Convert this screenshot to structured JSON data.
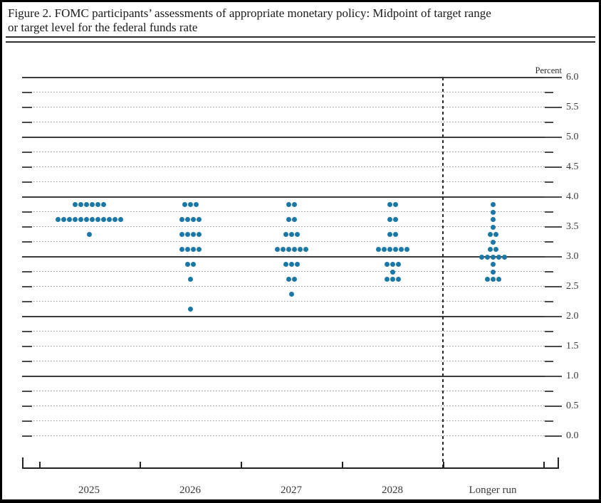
{
  "figure": {
    "title_line1": "Figure 2. FOMC participants’ assessments of appropriate monetary policy: Midpoint of target range",
    "title_line2": "or target level for the federal funds rate"
  },
  "chart_data": {
    "type": "scatter",
    "subtype": "fomc-dot-plot",
    "title": "Figure 2. FOMC participants’ assessments of appropriate monetary policy: Midpoint of target range or target level for the federal funds rate",
    "unit_label": "Percent",
    "ylim": [
      0.0,
      6.0
    ],
    "y_tick_step": 0.5,
    "grid_step": 0.25,
    "solid_gridlines": [
      1.0,
      2.0,
      3.0,
      4.0,
      5.0,
      6.0
    ],
    "y_tick_labels": [
      "6.0",
      "5.5",
      "5.0",
      "4.5",
      "4.0",
      "3.5",
      "3.0",
      "2.5",
      "2.0",
      "1.5",
      "1.0",
      "0.5",
      "0.0"
    ],
    "categories": [
      "2025",
      "2026",
      "2027",
      "2028",
      "Longer run"
    ],
    "dot_color": "#1a78a8",
    "participants_per_column": 19,
    "series": [
      {
        "name": "2025",
        "dots": [
          {
            "rate": 3.875,
            "count": 6
          },
          {
            "rate": 3.625,
            "count": 12
          },
          {
            "rate": 3.375,
            "count": 1
          }
        ]
      },
      {
        "name": "2026",
        "dots": [
          {
            "rate": 3.875,
            "count": 3
          },
          {
            "rate": 3.625,
            "count": 4
          },
          {
            "rate": 3.375,
            "count": 4
          },
          {
            "rate": 3.125,
            "count": 4
          },
          {
            "rate": 2.875,
            "count": 2
          },
          {
            "rate": 2.625,
            "count": 1
          },
          {
            "rate": 2.125,
            "count": 1
          }
        ]
      },
      {
        "name": "2027",
        "dots": [
          {
            "rate": 3.875,
            "count": 2
          },
          {
            "rate": 3.625,
            "count": 2
          },
          {
            "rate": 3.375,
            "count": 3
          },
          {
            "rate": 3.125,
            "count": 6
          },
          {
            "rate": 2.875,
            "count": 3
          },
          {
            "rate": 2.625,
            "count": 2
          },
          {
            "rate": 2.375,
            "count": 1
          }
        ]
      },
      {
        "name": "2028",
        "dots": [
          {
            "rate": 3.875,
            "count": 2
          },
          {
            "rate": 3.625,
            "count": 2
          },
          {
            "rate": 3.375,
            "count": 2
          },
          {
            "rate": 3.125,
            "count": 6
          },
          {
            "rate": 2.875,
            "count": 3
          },
          {
            "rate": 2.75,
            "count": 1
          },
          {
            "rate": 2.625,
            "count": 3
          }
        ]
      },
      {
        "name": "Longer run",
        "dots": [
          {
            "rate": 3.875,
            "count": 1
          },
          {
            "rate": 3.75,
            "count": 1
          },
          {
            "rate": 3.625,
            "count": 1
          },
          {
            "rate": 3.5,
            "count": 1
          },
          {
            "rate": 3.375,
            "count": 2
          },
          {
            "rate": 3.25,
            "count": 1
          },
          {
            "rate": 3.125,
            "count": 2
          },
          {
            "rate": 3.0,
            "count": 5
          },
          {
            "rate": 2.875,
            "count": 1
          },
          {
            "rate": 2.75,
            "count": 1
          },
          {
            "rate": 2.625,
            "count": 3
          }
        ]
      }
    ]
  }
}
